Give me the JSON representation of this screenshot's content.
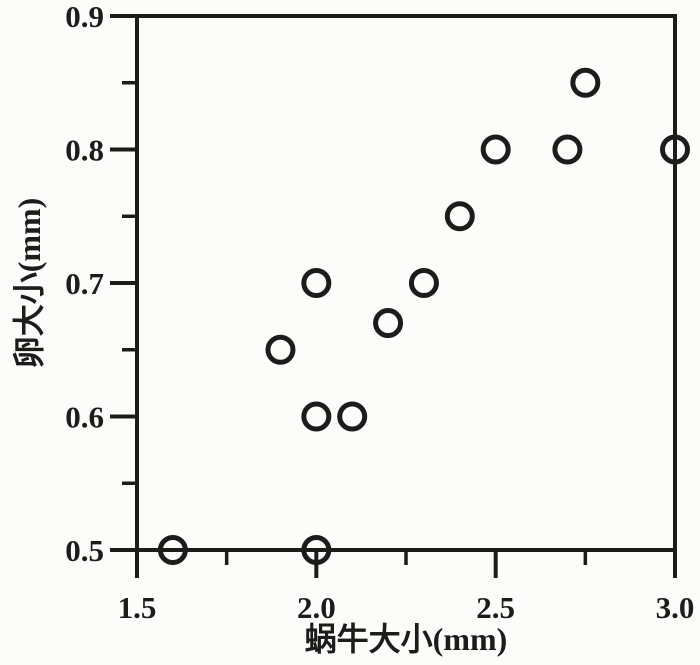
{
  "page": {
    "background": "#fcfcfa",
    "ink": "#1e1b1b"
  },
  "chart_data": {
    "type": "scatter",
    "title": "",
    "xlabel": "蜗牛大小(mm)",
    "ylabel": "卵大小(mm)",
    "xlim": [
      1.5,
      3.0
    ],
    "ylim": [
      0.5,
      0.9
    ],
    "grid": false,
    "legend": null,
    "x_major_ticks": [
      1.5,
      2.0,
      2.5,
      3.0
    ],
    "x_tick_labels": [
      "1.5",
      "2.0",
      "2.5",
      "3.0"
    ],
    "x_minor_ticks": [
      1.75,
      2.25,
      2.75
    ],
    "y_major_ticks": [
      0.5,
      0.6,
      0.7,
      0.8,
      0.9
    ],
    "y_tick_labels": [
      "0.5",
      "0.6",
      "0.7",
      "0.8",
      "0.9"
    ],
    "y_minor_ticks": [
      0.55,
      0.65,
      0.75,
      0.85
    ],
    "marker": {
      "shape": "open-circle",
      "radius_px": 12.5,
      "stroke_px": 5,
      "color": "#1e1b1b",
      "fill": "none"
    },
    "points": [
      {
        "x": 1.6,
        "y": 0.5
      },
      {
        "x": 2.0,
        "y": 0.5
      },
      {
        "x": 2.0,
        "y": 0.6
      },
      {
        "x": 2.1,
        "y": 0.6
      },
      {
        "x": 1.9,
        "y": 0.65
      },
      {
        "x": 2.2,
        "y": 0.67
      },
      {
        "x": 2.0,
        "y": 0.7
      },
      {
        "x": 2.3,
        "y": 0.7
      },
      {
        "x": 2.4,
        "y": 0.75
      },
      {
        "x": 2.5,
        "y": 0.8
      },
      {
        "x": 2.7,
        "y": 0.8
      },
      {
        "x": 3.0,
        "y": 0.8
      },
      {
        "x": 2.75,
        "y": 0.85
      }
    ]
  }
}
